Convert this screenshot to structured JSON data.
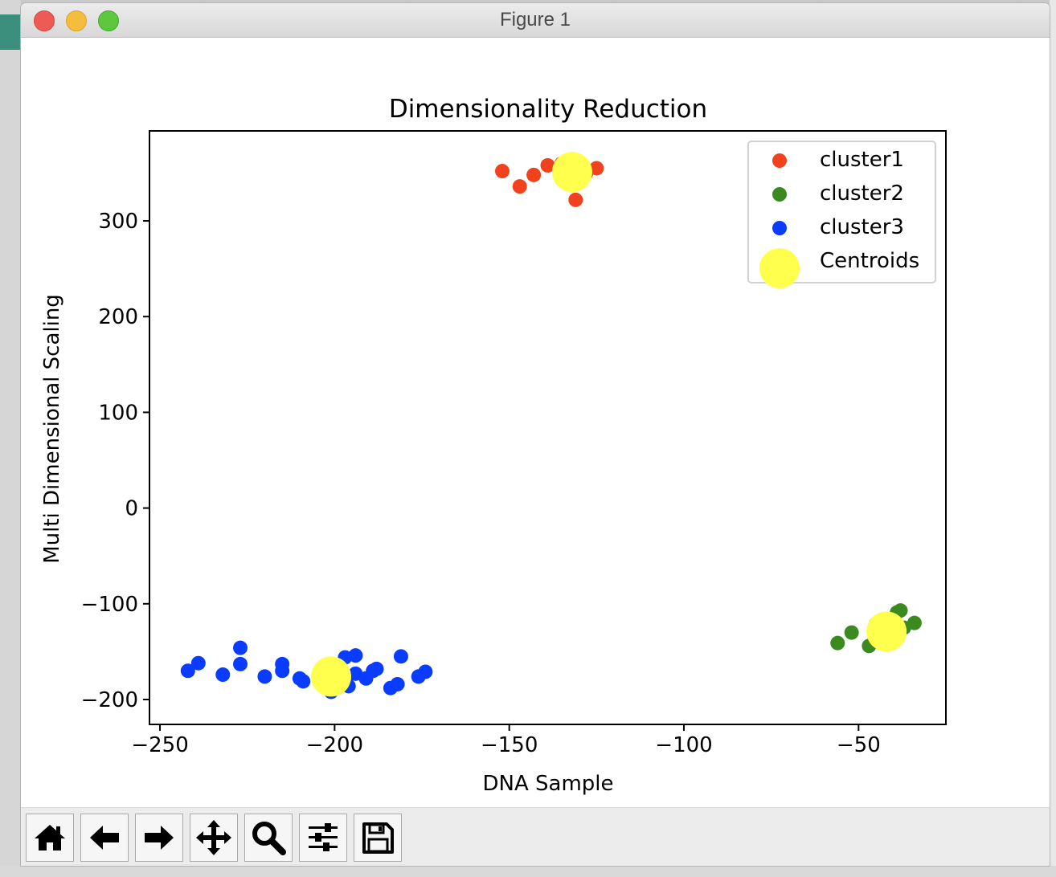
{
  "window": {
    "title": "Figure 1"
  },
  "toolbar": {
    "buttons": [
      {
        "name": "home-button",
        "icon": "home-icon"
      },
      {
        "name": "back-button",
        "icon": "arrow-left-icon"
      },
      {
        "name": "forward-button",
        "icon": "arrow-right-icon"
      },
      {
        "name": "pan-button",
        "icon": "move-icon"
      },
      {
        "name": "zoom-button",
        "icon": "magnifier-icon"
      },
      {
        "name": "configure-subplots-button",
        "icon": "sliders-icon"
      },
      {
        "name": "save-button",
        "icon": "floppy-disk-icon"
      }
    ]
  },
  "chart_data": {
    "type": "scatter",
    "title": "Dimensionality Reduction",
    "xlabel": "DNA Sample",
    "ylabel": "Multi Dimensional Scaling",
    "xlim": [
      -253,
      -25
    ],
    "ylim": [
      -226,
      394
    ],
    "xticks": [
      -250,
      -200,
      -150,
      -100,
      -50
    ],
    "yticks": [
      -200,
      -100,
      0,
      100,
      200,
      300
    ],
    "xtick_labels": [
      "−250",
      "−200",
      "−150",
      "−100",
      "−50"
    ],
    "ytick_labels": [
      "−200",
      "−100",
      "0",
      "100",
      "200",
      "300"
    ],
    "grid": false,
    "legend_position": "top-right",
    "series": [
      {
        "name": "cluster1",
        "color": "#f0421c",
        "marker_size": "small",
        "points": [
          [
            -152,
            352
          ],
          [
            -147,
            336
          ],
          [
            -143,
            348
          ],
          [
            -139,
            358
          ],
          [
            -134,
            346
          ],
          [
            -128,
            350
          ],
          [
            -125,
            355
          ],
          [
            -131,
            322
          ],
          [
            -135,
            360
          ]
        ]
      },
      {
        "name": "cluster2",
        "color": "#3a8a20",
        "marker_size": "small",
        "points": [
          [
            -56,
            -141
          ],
          [
            -52,
            -130
          ],
          [
            -47,
            -144
          ],
          [
            -45,
            -121
          ],
          [
            -42,
            -139
          ],
          [
            -39,
            -109
          ],
          [
            -38,
            -107
          ],
          [
            -34,
            -120
          ],
          [
            -37,
            -125
          ]
        ]
      },
      {
        "name": "cluster3",
        "color": "#0a3cff",
        "marker_size": "small",
        "points": [
          [
            -242,
            -170
          ],
          [
            -239,
            -162
          ],
          [
            -232,
            -174
          ],
          [
            -227,
            -146
          ],
          [
            -227,
            -163
          ],
          [
            -220,
            -176
          ],
          [
            -215,
            -163
          ],
          [
            -215,
            -170
          ],
          [
            -210,
            -178
          ],
          [
            -209,
            -181
          ],
          [
            -201,
            -192
          ],
          [
            -197,
            -156
          ],
          [
            -196,
            -186
          ],
          [
            -194,
            -154
          ],
          [
            -194,
            -173
          ],
          [
            -191,
            -178
          ],
          [
            -189,
            -170
          ],
          [
            -188,
            -168
          ],
          [
            -184,
            -188
          ],
          [
            -182,
            -184
          ],
          [
            -181,
            -155
          ],
          [
            -176,
            -176
          ],
          [
            -174,
            -171
          ],
          [
            -199,
            -180
          ],
          [
            -203,
            -170
          ]
        ]
      },
      {
        "name": "Centroids",
        "color": "#ffff4d",
        "marker_size": "large",
        "points": [
          [
            -132,
            351
          ],
          [
            -42,
            -129
          ],
          [
            -201,
            -176
          ]
        ]
      }
    ]
  }
}
